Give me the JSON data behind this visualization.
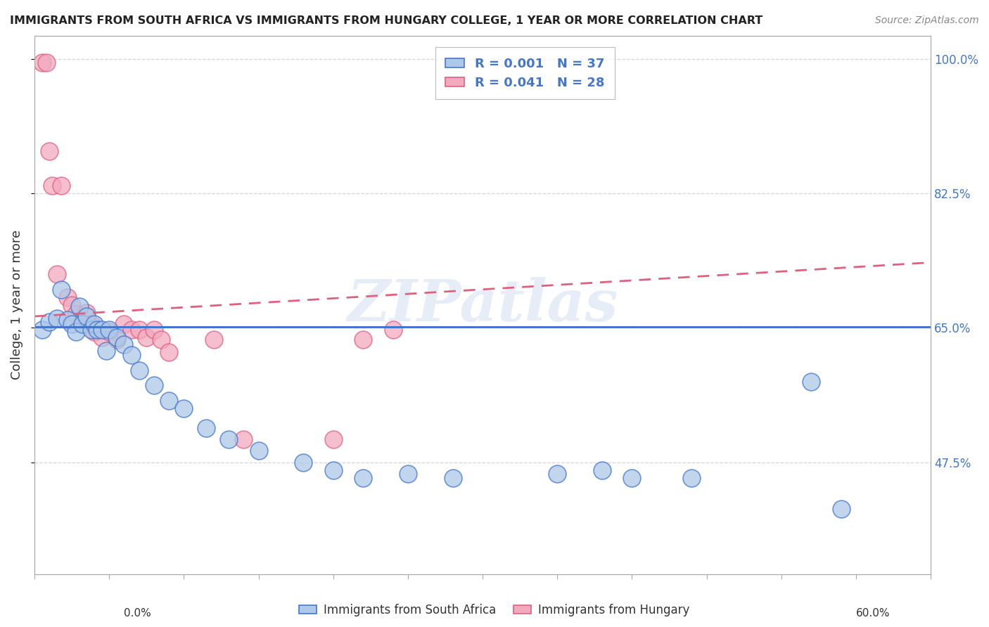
{
  "title": "IMMIGRANTS FROM SOUTH AFRICA VS IMMIGRANTS FROM HUNGARY COLLEGE, 1 YEAR OR MORE CORRELATION CHART",
  "source": "Source: ZipAtlas.com",
  "xlabel_blue": "Immigrants from South Africa",
  "xlabel_pink": "Immigrants from Hungary",
  "ylabel": "College, 1 year or more",
  "xlim": [
    0.0,
    0.6
  ],
  "ylim": [
    0.33,
    1.03
  ],
  "xtick_labels_bottom": [
    "0.0%",
    "60.0%"
  ],
  "xtick_values_bottom": [
    0.0,
    0.6
  ],
  "ytick_right_labels": [
    "100.0%",
    "82.5%",
    "65.0%",
    "47.5%"
  ],
  "ytick_right_values": [
    1.0,
    0.825,
    0.65,
    0.475
  ],
  "blue_R": "0.001",
  "blue_N": "37",
  "pink_R": "0.041",
  "pink_N": "28",
  "blue_color": "#adc8e8",
  "pink_color": "#f2aabf",
  "blue_line_color": "#4477cc",
  "pink_line_color": "#e06080",
  "grid_color": "#cccccc",
  "watermark_text": "ZIPatlas",
  "blue_scatter_x": [
    0.005,
    0.01,
    0.015,
    0.018,
    0.022,
    0.025,
    0.028,
    0.03,
    0.032,
    0.035,
    0.038,
    0.04,
    0.042,
    0.045,
    0.048,
    0.05,
    0.055,
    0.06,
    0.065,
    0.07,
    0.08,
    0.09,
    0.1,
    0.115,
    0.13,
    0.15,
    0.18,
    0.2,
    0.22,
    0.25,
    0.28,
    0.35,
    0.38,
    0.4,
    0.44,
    0.52,
    0.54
  ],
  "blue_scatter_y": [
    0.648,
    0.658,
    0.662,
    0.7,
    0.66,
    0.655,
    0.645,
    0.678,
    0.655,
    0.665,
    0.648,
    0.655,
    0.648,
    0.648,
    0.62,
    0.648,
    0.638,
    0.628,
    0.615,
    0.595,
    0.575,
    0.555,
    0.545,
    0.52,
    0.505,
    0.49,
    0.475,
    0.465,
    0.455,
    0.46,
    0.455,
    0.46,
    0.465,
    0.455,
    0.455,
    0.58,
    0.415
  ],
  "pink_scatter_x": [
    0.005,
    0.008,
    0.01,
    0.012,
    0.015,
    0.018,
    0.022,
    0.025,
    0.028,
    0.032,
    0.035,
    0.038,
    0.04,
    0.045,
    0.05,
    0.055,
    0.06,
    0.065,
    0.07,
    0.075,
    0.08,
    0.085,
    0.09,
    0.12,
    0.14,
    0.2,
    0.22,
    0.24
  ],
  "pink_scatter_y": [
    0.995,
    0.995,
    0.88,
    0.835,
    0.72,
    0.835,
    0.69,
    0.68,
    0.668,
    0.658,
    0.67,
    0.655,
    0.645,
    0.638,
    0.645,
    0.635,
    0.655,
    0.648,
    0.648,
    0.638,
    0.648,
    0.635,
    0.618,
    0.635,
    0.505,
    0.505,
    0.635,
    0.648
  ],
  "blue_trend_x": [
    0.0,
    0.6
  ],
  "blue_trend_y": [
    0.651,
    0.651
  ],
  "pink_trend_x": [
    0.0,
    0.6
  ],
  "pink_trend_y": [
    0.665,
    0.735
  ]
}
